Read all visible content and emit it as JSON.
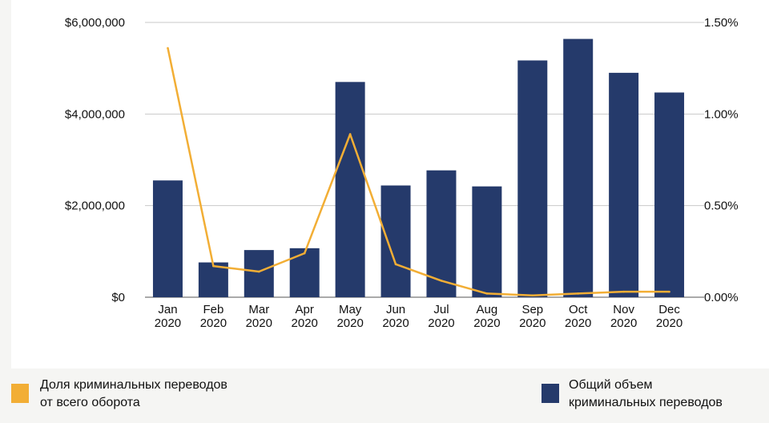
{
  "chart_data": {
    "type": "bar",
    "categories": [
      [
        "Jan",
        "2020"
      ],
      [
        "Feb",
        "2020"
      ],
      [
        "Mar",
        "2020"
      ],
      [
        "Apr",
        "2020"
      ],
      [
        "May",
        "2020"
      ],
      [
        "Jun",
        "2020"
      ],
      [
        "Jul",
        "2020"
      ],
      [
        "Aug",
        "2020"
      ],
      [
        "Sep",
        "2020"
      ],
      [
        "Oct",
        "2020"
      ],
      [
        "Nov",
        "2020"
      ],
      [
        "Dec",
        "2020"
      ]
    ],
    "series": [
      {
        "name": "Общий объем криминальных переводов",
        "type": "bar",
        "axis": "left",
        "color": "#253a6b",
        "values": [
          2550000,
          760000,
          1030000,
          1070000,
          4700000,
          2440000,
          2770000,
          2420000,
          5170000,
          5640000,
          4900000,
          4470000
        ]
      },
      {
        "name": "Доля криминальных переводов от всего оборота",
        "type": "line",
        "axis": "right",
        "color": "#f2ae35",
        "values": [
          1.36,
          0.17,
          0.14,
          0.24,
          0.89,
          0.18,
          0.09,
          0.02,
          0.01,
          0.02,
          0.03,
          0.03
        ]
      }
    ],
    "left_axis": {
      "min": 0,
      "max": 6000000,
      "ticks": [
        "$0",
        "$2,000,000",
        "$4,000,000",
        "$6,000,000"
      ],
      "tick_values": [
        0,
        2000000,
        4000000,
        6000000
      ]
    },
    "right_axis": {
      "min": 0,
      "max": 1.5,
      "ticks": [
        "0.00%",
        "0.50%",
        "1.00%",
        "1.50%"
      ],
      "tick_values": [
        0,
        0.5,
        1.0,
        1.5
      ]
    },
    "grid": true,
    "legend_position": "bottom"
  },
  "legend": {
    "line_label": "Доля криминальных переводов\nот всего оборота",
    "bar_label": "Общий объем\nкриминальных переводов"
  }
}
